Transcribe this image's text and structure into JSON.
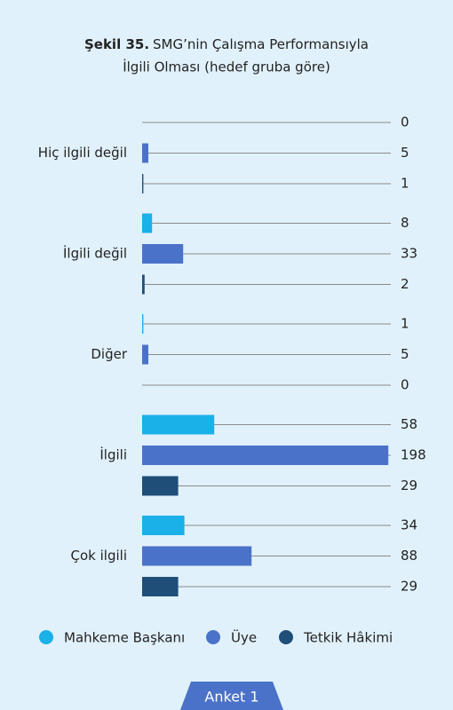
{
  "chart_data": {
    "type": "bar",
    "orientation": "horizontal",
    "title_label": "Şekil 35.",
    "title": "SMG’nin Çalışma Performansıyla İlgili Olması (hedef gruba göre)",
    "categories": [
      "Hiç ilgili değil",
      "İlgili değil",
      "Diğer",
      "İlgili",
      "Çok ilgili"
    ],
    "series": [
      {
        "name": "Mahkeme Başkanı",
        "color": "#1ab0e8",
        "values": [
          0,
          8,
          1,
          58,
          34
        ]
      },
      {
        "name": "Üye",
        "color": "#4a72c8",
        "values": [
          5,
          33,
          5,
          198,
          88
        ]
      },
      {
        "name": "Tetkik Hâkimi",
        "color": "#1f4e79",
        "values": [
          1,
          2,
          0,
          29,
          29
        ]
      }
    ],
    "xlim": [
      0,
      200
    ],
    "legend": "bottom",
    "footer": "Anket 1"
  }
}
